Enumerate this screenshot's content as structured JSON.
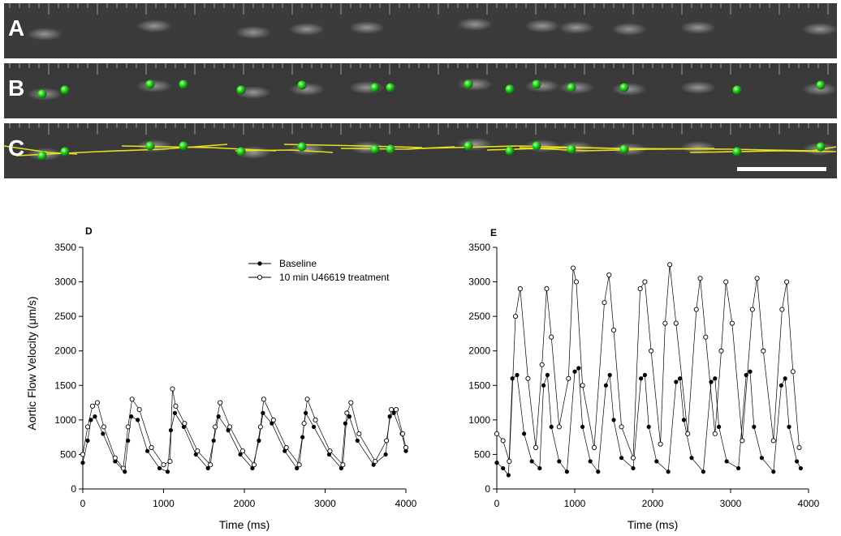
{
  "figure": {
    "panel_labels": [
      "A",
      "B",
      "C"
    ],
    "scale_bar_present": true
  },
  "chart_data": [
    {
      "panel": "D",
      "type": "line",
      "xlabel": "Time (ms)",
      "ylabel": "Aortic Flow Velocity (μm/s)",
      "xlim": [
        0,
        4000
      ],
      "ylim": [
        0,
        3500
      ],
      "xticks": [
        0,
        1000,
        2000,
        3000,
        4000
      ],
      "yticks": [
        0,
        500,
        1000,
        1500,
        2000,
        2500,
        3000,
        3500
      ],
      "legend_position": "top-center",
      "series": [
        {
          "name": "Baseline",
          "marker": "filled-circle",
          "x": [
            0,
            60,
            100,
            150,
            250,
            400,
            520,
            560,
            600,
            680,
            800,
            950,
            1050,
            1090,
            1140,
            1250,
            1400,
            1550,
            1620,
            1680,
            1800,
            1950,
            2100,
            2180,
            2230,
            2340,
            2500,
            2650,
            2720,
            2760,
            2860,
            3050,
            3200,
            3250,
            3300,
            3400,
            3600,
            3750,
            3800,
            3850,
            3950,
            4000
          ],
          "y": [
            380,
            700,
            1000,
            1050,
            800,
            400,
            250,
            700,
            1050,
            1000,
            550,
            300,
            250,
            850,
            1100,
            900,
            500,
            300,
            700,
            1050,
            850,
            500,
            300,
            700,
            1100,
            950,
            550,
            300,
            750,
            1100,
            900,
            500,
            300,
            950,
            1050,
            700,
            350,
            500,
            1050,
            1100,
            800,
            550
          ]
        },
        {
          "name": "10 min U46619 treatment",
          "marker": "open-circle",
          "x": [
            0,
            60,
            120,
            180,
            260,
            400,
            500,
            560,
            610,
            700,
            850,
            1000,
            1080,
            1110,
            1150,
            1260,
            1420,
            1580,
            1640,
            1700,
            1820,
            1980,
            2120,
            2200,
            2240,
            2360,
            2520,
            2680,
            2740,
            2780,
            2880,
            3060,
            3220,
            3270,
            3320,
            3420,
            3620,
            3760,
            3820,
            3880,
            3960,
            4000
          ],
          "y": [
            500,
            900,
            1200,
            1250,
            900,
            450,
            300,
            900,
            1300,
            1150,
            600,
            350,
            400,
            1450,
            1200,
            950,
            550,
            350,
            900,
            1250,
            900,
            550,
            350,
            900,
            1300,
            1000,
            600,
            350,
            950,
            1300,
            1000,
            550,
            350,
            1100,
            1250,
            800,
            400,
            700,
            1150,
            1150,
            800,
            600
          ]
        }
      ]
    },
    {
      "panel": "E",
      "type": "line",
      "xlabel": "Time (ms)",
      "ylabel": "",
      "xlim": [
        0,
        4000
      ],
      "ylim": [
        0,
        3500
      ],
      "xticks": [
        0,
        1000,
        2000,
        3000,
        4000
      ],
      "yticks": [
        0,
        500,
        1000,
        1500,
        2000,
        2500,
        3000,
        3500
      ],
      "series": [
        {
          "name": "Baseline",
          "marker": "filled-circle",
          "x": [
            0,
            80,
            150,
            200,
            260,
            350,
            450,
            550,
            600,
            650,
            700,
            800,
            900,
            1000,
            1050,
            1100,
            1200,
            1300,
            1400,
            1450,
            1500,
            1600,
            1750,
            1850,
            1900,
            1950,
            2050,
            2200,
            2300,
            2350,
            2400,
            2500,
            2650,
            2750,
            2800,
            2850,
            2950,
            3100,
            3200,
            3250,
            3300,
            3400,
            3550,
            3650,
            3700,
            3750,
            3850,
            3900
          ],
          "y": [
            380,
            300,
            200,
            1600,
            1650,
            800,
            400,
            300,
            1500,
            1650,
            900,
            400,
            250,
            1700,
            1750,
            900,
            400,
            250,
            1500,
            1650,
            1000,
            450,
            300,
            1600,
            1650,
            900,
            400,
            250,
            1550,
            1600,
            1000,
            450,
            250,
            1550,
            1600,
            900,
            400,
            300,
            1650,
            1700,
            900,
            450,
            250,
            1500,
            1600,
            900,
            400,
            300
          ]
        },
        {
          "name": "10 min U46619 treatment",
          "marker": "open-circle",
          "x": [
            0,
            80,
            160,
            240,
            300,
            400,
            500,
            580,
            640,
            700,
            800,
            920,
            980,
            1020,
            1100,
            1250,
            1380,
            1440,
            1500,
            1600,
            1750,
            1840,
            1900,
            1980,
            2100,
            2160,
            2220,
            2300,
            2450,
            2560,
            2610,
            2680,
            2800,
            2880,
            2940,
            3020,
            3150,
            3280,
            3340,
            3420,
            3550,
            3660,
            3720,
            3800,
            3880
          ],
          "y": [
            800,
            700,
            400,
            2500,
            2900,
            1600,
            600,
            1800,
            2900,
            2200,
            900,
            1600,
            3200,
            3000,
            1500,
            600,
            2700,
            3100,
            2300,
            900,
            450,
            2900,
            3000,
            2000,
            650,
            2400,
            3250,
            2400,
            800,
            2600,
            3050,
            2200,
            800,
            2000,
            3000,
            2400,
            700,
            2600,
            3050,
            2000,
            700,
            2600,
            3000,
            1700,
            600
          ]
        }
      ]
    }
  ]
}
